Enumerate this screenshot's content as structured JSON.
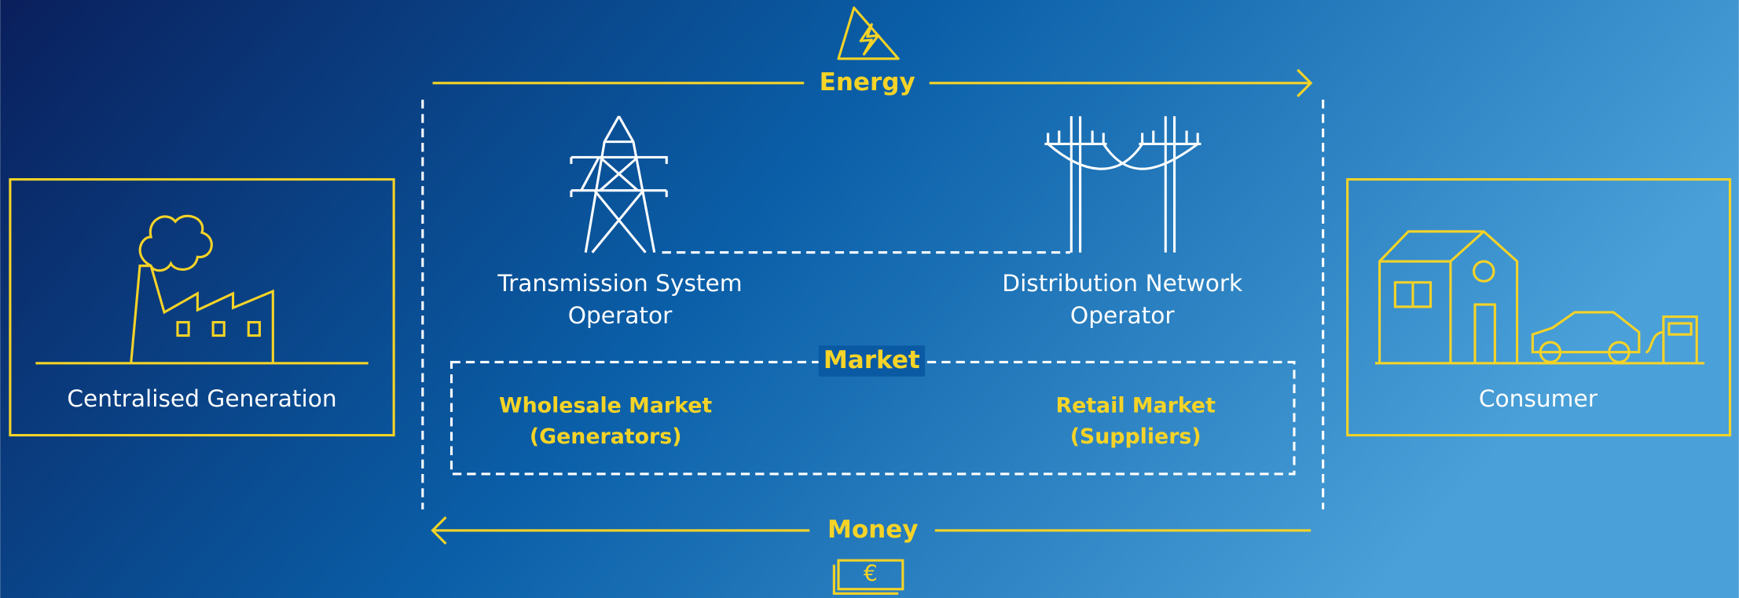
{
  "flows": {
    "energy": "Energy",
    "money": "Money",
    "currency_symbol": "€"
  },
  "nodes": [
    {
      "label": "Centralised Generation"
    },
    {
      "label_lines": [
        "Transmission System",
        "Operator"
      ]
    },
    {
      "label_lines": [
        "Distribution Network",
        "Operator"
      ]
    },
    {
      "label": "Consumer"
    }
  ],
  "market": {
    "title": "Market",
    "segments": [
      {
        "lines": [
          "Wholesale Market",
          "(Generators)"
        ]
      },
      {
        "lines": [
          "Retail Market",
          "(Suppliers)"
        ]
      }
    ]
  }
}
